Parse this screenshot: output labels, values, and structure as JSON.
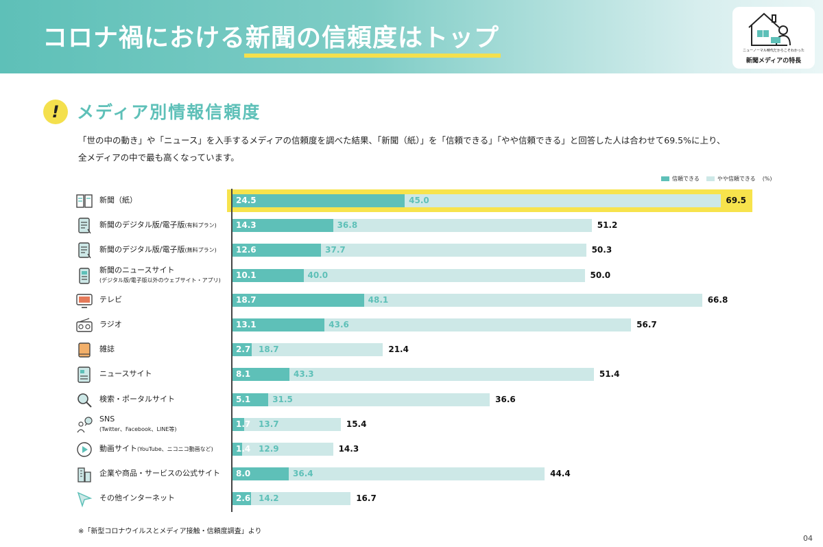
{
  "header": {
    "title_prefix": "コロナ禍における",
    "title_highlight": "新聞の信頼度はトップ"
  },
  "logo": {
    "small_text": "ニューノーマル時代だからこそわかった",
    "big_text": "新聞メディアの特長"
  },
  "section": {
    "mark": "!",
    "title": "メディア別情報信頼度"
  },
  "description": {
    "line1": "「世の中の動き」や「ニュース」を入手するメディアの信頼度を調べた結果、「新聞（紙）」を「信頼できる」「やや信頼できる」と回答した人は合わせて69.5%に上り、",
    "line2": "全メディアの中で最も高くなっています。"
  },
  "legend": {
    "items": [
      "信頼できる",
      "やや信頼できる"
    ],
    "unit": "(%)"
  },
  "colors": {
    "primary": "#5ec0b8",
    "secondary": "#cde8e7",
    "highlight": "#f7e34c",
    "text": "#222222"
  },
  "chart_data": {
    "type": "bar",
    "orientation": "horizontal",
    "stacked": true,
    "unit": "%",
    "categories": [
      {
        "label": "新聞（紙）",
        "sub": "",
        "icon": "newspaper-icon"
      },
      {
        "label": "新聞のデジタル版/電子版",
        "sub": "(有料プラン)",
        "icon": "tablet-icon"
      },
      {
        "label": "新聞のデジタル版/電子版",
        "sub": "(無料プラン)",
        "icon": "tablet-icon"
      },
      {
        "label": "新聞のニュースサイト",
        "sub": "(デジタル版/電子版以外のウェブサイト・アプリ)",
        "icon": "phone-news-icon"
      },
      {
        "label": "テレビ",
        "sub": "",
        "icon": "tv-icon"
      },
      {
        "label": "ラジオ",
        "sub": "",
        "icon": "radio-icon"
      },
      {
        "label": "雑誌",
        "sub": "",
        "icon": "magazine-icon"
      },
      {
        "label": "ニュースサイト",
        "sub": "",
        "icon": "news-site-icon"
      },
      {
        "label": "検索・ポータルサイト",
        "sub": "",
        "icon": "search-icon"
      },
      {
        "label": "SNS",
        "sub": "(Twitter、Facebook、LINE等)",
        "icon": "sns-icon"
      },
      {
        "label": "動画サイト",
        "sub": "(YouTube、ニコニコ動画など)",
        "icon": "play-icon"
      },
      {
        "label": "企業や商品・サービスの公式サイト",
        "sub": "",
        "icon": "building-icon"
      },
      {
        "label": "その他インターネット",
        "sub": "",
        "icon": "cursor-icon"
      }
    ],
    "series": [
      {
        "name": "信頼できる",
        "values": [
          "24.5",
          "14.3",
          "12.6",
          "10.1",
          "18.7",
          "13.1",
          "2.7",
          "8.1",
          "5.1",
          "1.7",
          "1.4",
          "8.0",
          "2.6"
        ]
      },
      {
        "name": "やや信頼できる",
        "values": [
          "45.0",
          "36.8",
          "37.7",
          "40.0",
          "48.1",
          "43.6",
          "18.7",
          "43.3",
          "31.5",
          "13.7",
          "12.9",
          "36.4",
          "14.2"
        ]
      }
    ],
    "totals": [
      "69.5",
      "51.2",
      "50.3",
      "50.0",
      "66.8",
      "56.7",
      "21.4",
      "51.4",
      "36.6",
      "15.4",
      "14.3",
      "44.4",
      "16.7"
    ],
    "highlighted_index": 0,
    "xlim": [
      0,
      100
    ]
  },
  "footer": {
    "source": "※「新型コロナウイルスとメディア接触・信頼度調査」より",
    "page": "04"
  }
}
